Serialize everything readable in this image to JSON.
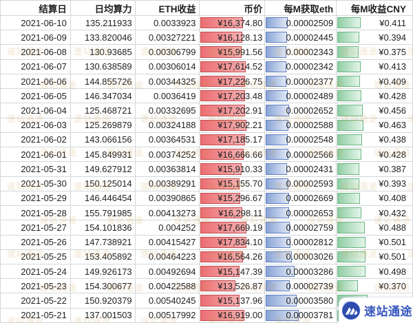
{
  "table": {
    "columns": [
      {
        "key": "date",
        "label": "结算日"
      },
      {
        "key": "hashrate",
        "label": "日均算力"
      },
      {
        "key": "eth",
        "label": "ETH收益"
      },
      {
        "key": "price",
        "label": "币价",
        "bar": "price"
      },
      {
        "key": "per_m_eth",
        "label": "每M获取eth",
        "bar": "eth"
      },
      {
        "key": "per_m_cny",
        "label": "每M收益CNY",
        "bar": "cny"
      }
    ],
    "rows": [
      {
        "date": "2021-06-10",
        "hashrate": "135.211933",
        "eth": "0.0033923",
        "price": "¥16,374.80",
        "price_bar": 65.5,
        "per_m_eth": "0.00002509",
        "per_m_eth_bar": 30.6,
        "per_m_cny": "¥0.411",
        "per_m_cny_bar": 30.4
      },
      {
        "date": "2021-06-09",
        "hashrate": "133.820046",
        "eth": "0.00327221",
        "price": "¥16,128.13",
        "price_bar": 64.5,
        "per_m_eth": "0.00002445",
        "per_m_eth_bar": 29.8,
        "per_m_cny": "¥0.394",
        "per_m_cny_bar": 29.2
      },
      {
        "date": "2021-06-08",
        "hashrate": "130.93685",
        "eth": "0.00306799",
        "price": "¥15,991.56",
        "price_bar": 64.0,
        "per_m_eth": "0.00002343",
        "per_m_eth_bar": 28.6,
        "per_m_cny": "¥0.375",
        "per_m_cny_bar": 27.8
      },
      {
        "date": "2021-06-07",
        "hashrate": "130.638589",
        "eth": "0.00306014",
        "price": "¥17,614.52",
        "price_bar": 70.5,
        "per_m_eth": "0.00002342",
        "per_m_eth_bar": 28.6,
        "per_m_cny": "¥0.413",
        "per_m_cny_bar": 30.6
      },
      {
        "date": "2021-06-06",
        "hashrate": "144.855726",
        "eth": "0.00344325",
        "price": "¥17,226.75",
        "price_bar": 68.9,
        "per_m_eth": "0.00002377",
        "per_m_eth_bar": 29.0,
        "per_m_cny": "¥0.409",
        "per_m_cny_bar": 30.3
      },
      {
        "date": "2021-06-05",
        "hashrate": "146.347034",
        "eth": "0.0036419",
        "price": "¥17,203.48",
        "price_bar": 68.8,
        "per_m_eth": "0.00002489",
        "per_m_eth_bar": 30.4,
        "per_m_cny": "¥0.428",
        "per_m_cny_bar": 31.7
      },
      {
        "date": "2021-06-04",
        "hashrate": "125.468721",
        "eth": "0.00332695",
        "price": "¥17,202.91",
        "price_bar": 68.8,
        "per_m_eth": "0.00002652",
        "per_m_eth_bar": 32.3,
        "per_m_cny": "¥0.456",
        "per_m_cny_bar": 33.8
      },
      {
        "date": "2021-06-03",
        "hashrate": "125.269879",
        "eth": "0.00324188",
        "price": "¥17,902.21",
        "price_bar": 71.6,
        "per_m_eth": "0.00002588",
        "per_m_eth_bar": 31.6,
        "per_m_cny": "¥0.463",
        "per_m_cny_bar": 34.3
      },
      {
        "date": "2021-06-02",
        "hashrate": "143.066156",
        "eth": "0.00364531",
        "price": "¥17,185.17",
        "price_bar": 68.7,
        "per_m_eth": "0.00002548",
        "per_m_eth_bar": 31.1,
        "per_m_cny": "¥0.438",
        "per_m_cny_bar": 32.4
      },
      {
        "date": "2021-06-01",
        "hashrate": "145.849931",
        "eth": "0.00374252",
        "price": "¥16,666.66",
        "price_bar": 66.7,
        "per_m_eth": "0.00002566",
        "per_m_eth_bar": 31.3,
        "per_m_cny": "¥0.428",
        "per_m_cny_bar": 31.7
      },
      {
        "date": "2021-05-31",
        "hashrate": "149.627912",
        "eth": "0.00363814",
        "price": "¥15,910.33",
        "price_bar": 63.6,
        "per_m_eth": "0.00002431",
        "per_m_eth_bar": 29.6,
        "per_m_cny": "¥0.387",
        "per_m_cny_bar": 28.7
      },
      {
        "date": "2021-05-30",
        "hashrate": "150.125014",
        "eth": "0.00389291",
        "price": "¥15,155.70",
        "price_bar": 60.6,
        "per_m_eth": "0.00002593",
        "per_m_eth_bar": 31.6,
        "per_m_cny": "¥0.393",
        "per_m_cny_bar": 29.1
      },
      {
        "date": "2021-05-29",
        "hashrate": "146.446454",
        "eth": "0.00390865",
        "price": "¥15,296.67",
        "price_bar": 61.2,
        "per_m_eth": "0.00002669",
        "per_m_eth_bar": 32.5,
        "per_m_cny": "¥0.408",
        "per_m_cny_bar": 30.2
      },
      {
        "date": "2021-05-28",
        "hashrate": "155.791985",
        "eth": "0.00413273",
        "price": "¥16,298.11",
        "price_bar": 65.2,
        "per_m_eth": "0.00002653",
        "per_m_eth_bar": 32.4,
        "per_m_cny": "¥0.432",
        "per_m_cny_bar": 32.0
      },
      {
        "date": "2021-05-27",
        "hashrate": "154.101836",
        "eth": "0.004252",
        "price": "¥17,669.19",
        "price_bar": 70.7,
        "per_m_eth": "0.00002759",
        "per_m_eth_bar": 33.6,
        "per_m_cny": "¥0.488",
        "per_m_cny_bar": 36.1
      },
      {
        "date": "2021-05-26",
        "hashrate": "147.738921",
        "eth": "0.00415427",
        "price": "¥17,834.10",
        "price_bar": 71.3,
        "per_m_eth": "0.00002812",
        "per_m_eth_bar": 34.3,
        "per_m_cny": "¥0.501",
        "per_m_cny_bar": 37.1
      },
      {
        "date": "2021-05-25",
        "hashrate": "153.405892",
        "eth": "0.00464223",
        "price": "¥16,564.26",
        "price_bar": 66.3,
        "per_m_eth": "0.00003026",
        "per_m_eth_bar": 36.9,
        "per_m_cny": "¥0.501",
        "per_m_cny_bar": 37.1
      },
      {
        "date": "2021-05-24",
        "hashrate": "149.926173",
        "eth": "0.00492694",
        "price": "¥15,147.39",
        "price_bar": 60.6,
        "per_m_eth": "0.00003286",
        "per_m_eth_bar": 40.1,
        "per_m_cny": "¥0.498",
        "per_m_cny_bar": 36.9
      },
      {
        "date": "2021-05-23",
        "hashrate": "154.300677",
        "eth": "0.00422588",
        "price": "¥13,526.87",
        "price_bar": 54.1,
        "per_m_eth": "0.00002739",
        "per_m_eth_bar": 33.4,
        "per_m_cny": "¥0.370",
        "per_m_cny_bar": 27.4
      },
      {
        "date": "2021-05-22",
        "hashrate": "150.920379",
        "eth": "0.00540245",
        "price": "¥15,137.96",
        "price_bar": 60.6,
        "per_m_eth": "0.00003580",
        "per_m_eth_bar": 43.7,
        "per_m_cny": "",
        "per_m_cny_bar": 40.0
      },
      {
        "date": "2021-05-21",
        "hashrate": "137.001503",
        "eth": "0.00517992",
        "price": "¥16,919.00",
        "price_bar": 67.7,
        "per_m_eth": "0.00003781",
        "per_m_eth_bar": 46.1,
        "per_m_cny": "",
        "per_m_cny_bar": 47.0
      }
    ]
  },
  "watermark": {
    "tile_text": "速站通途"
  },
  "logo": {
    "text": "速站通途"
  },
  "colors": {
    "price_bar": {
      "fill_start": "#ec6e71",
      "fill_end": "#f5b0b2",
      "border": "#bf4b4e"
    },
    "eth_bar": {
      "fill_start": "#8aa4d6",
      "fill_end": "#dfe7f5",
      "border": "#5f7fc1"
    },
    "cny_bar": {
      "fill_start": "#90cda4",
      "fill_end": "#e4f5ea",
      "border": "#69b680"
    },
    "grid_line": "#d3d7dc",
    "text": "#1f1f1f",
    "watermark": "#c8963c",
    "logo_blue": "#3757bd"
  }
}
